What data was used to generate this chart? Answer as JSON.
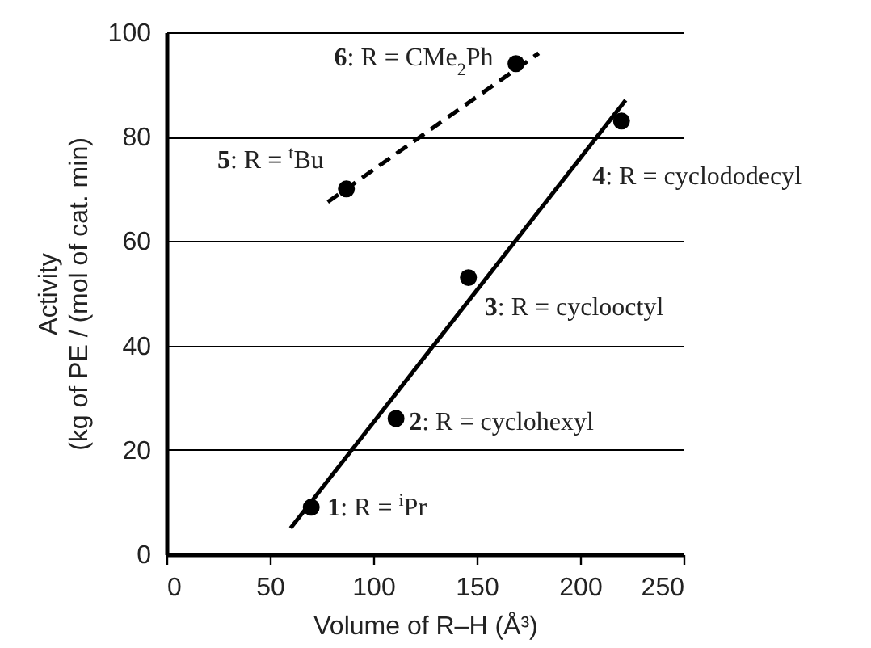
{
  "chart_data": {
    "type": "scatter",
    "xlabel": "Volume of R–H (Å³)",
    "ylabel": "Activity\n(kg of PE / (mol of cat. min)",
    "xlim": [
      0,
      250
    ],
    "xticks": [
      0,
      50,
      100,
      150,
      200,
      250
    ],
    "ylim": [
      0,
      100
    ],
    "yticks": [
      0,
      20,
      40,
      60,
      80,
      100
    ],
    "grid": "y",
    "marker": "circle",
    "series": [
      {
        "color": "#000000",
        "x": [
          70,
          111,
          146,
          220
        ],
        "values": [
          9,
          26,
          53,
          83
        ]
      },
      {
        "color": "#000000",
        "x": [
          87,
          169
        ],
        "values": [
          70,
          94
        ]
      },
      {
        "type": "line",
        "color": "#000000",
        "line_style": "solid",
        "marker": "none",
        "x": [
          60,
          222
        ],
        "values": [
          5,
          87
        ]
      },
      {
        "type": "line",
        "color": "#000000",
        "line_style": "dashed",
        "marker": "none",
        "x": [
          78,
          180
        ],
        "values": [
          67.5,
          96
        ]
      }
    ],
    "annotations": [
      {
        "text": "1: R = $^{i}$Pr",
        "x": 70,
        "y": 9
      },
      {
        "text": "2: R = cyclohexyl",
        "x": 111,
        "y": 26
      },
      {
        "text": "3: R = cyclooctyl",
        "x": 146,
        "y": 53
      },
      {
        "text": "4: R = cyclododecyl",
        "x": 220,
        "y": 83
      },
      {
        "text": "5: R = $^{t}$Bu",
        "x": 87,
        "y": 70
      },
      {
        "text": "6: R = CMe$_{2}$Ph",
        "x": 169,
        "y": 94
      }
    ]
  }
}
